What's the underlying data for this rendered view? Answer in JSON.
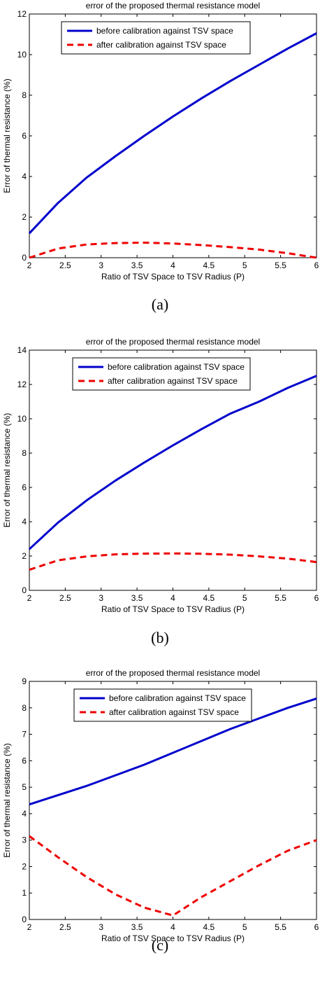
{
  "chart_data": [
    {
      "type": "line",
      "panel_label": "(a)",
      "title": "error of the proposed thermal resistance model",
      "xlabel": "Ratio of TSV Space to TSV Radius (P)",
      "ylabel": "Error of thermal resistance (%)",
      "xlim": [
        2,
        6
      ],
      "ylim": [
        0,
        12
      ],
      "xticks": [
        "2",
        "2.5",
        "3",
        "3.5",
        "4",
        "4.5",
        "5",
        "5.5",
        "6"
      ],
      "yticks": [
        "0",
        "2",
        "4",
        "6",
        "8",
        "10",
        "12"
      ],
      "grid": false,
      "legend_position": "top",
      "x": [
        2,
        2.4,
        2.8,
        3.2,
        3.6,
        4.0,
        4.4,
        4.8,
        5.2,
        5.6,
        6.0
      ],
      "series": [
        {
          "name": "before calibration against TSV space",
          "color": "#0000cc",
          "dash": "solid",
          "values": [
            1.2,
            2.7,
            3.95,
            5.0,
            6.0,
            6.95,
            7.85,
            8.7,
            9.5,
            10.3,
            11.05
          ]
        },
        {
          "name": "after calibration against TSV space",
          "color": "#ee0000",
          "dash": "dashed",
          "values": [
            0.0,
            0.45,
            0.65,
            0.72,
            0.74,
            0.7,
            0.62,
            0.52,
            0.4,
            0.22,
            0.0
          ]
        }
      ]
    },
    {
      "type": "line",
      "panel_label": "(b)",
      "title": "error of the proposed thermal resistance model",
      "xlabel": "Ratio of TSV Space to TSV Radius (P)",
      "ylabel": "Error of thermal resistance (%)",
      "xlim": [
        2,
        6
      ],
      "ylim": [
        0,
        14
      ],
      "xticks": [
        "2",
        "2.5",
        "3",
        "3.5",
        "4",
        "4.5",
        "5",
        "5.5",
        "6"
      ],
      "yticks": [
        "0",
        "2",
        "4",
        "6",
        "8",
        "10",
        "12",
        "14"
      ],
      "grid": false,
      "legend_position": "top",
      "x": [
        2,
        2.4,
        2.8,
        3.2,
        3.6,
        4.0,
        4.4,
        4.8,
        5.2,
        5.6,
        6.0
      ],
      "series": [
        {
          "name": "before calibration against TSV space",
          "color": "#0000cc",
          "dash": "solid",
          "values": [
            2.4,
            3.95,
            5.25,
            6.4,
            7.45,
            8.45,
            9.4,
            10.3,
            11.0,
            11.8,
            12.5
          ]
        },
        {
          "name": "after calibration against TSV space",
          "color": "#ee0000",
          "dash": "dashed",
          "values": [
            1.2,
            1.75,
            1.98,
            2.1,
            2.14,
            2.15,
            2.13,
            2.08,
            1.98,
            1.85,
            1.65
          ]
        }
      ]
    },
    {
      "type": "line",
      "panel_label": "(c)",
      "title": "error of the proposed thermal resistance model",
      "xlabel": "Ratio of TSV Space to TSV Radius (P)",
      "ylabel": "Error of thermal resistance (%)",
      "xlim": [
        2,
        6
      ],
      "ylim": [
        0,
        9
      ],
      "xticks": [
        "2",
        "2.5",
        "3",
        "3.5",
        "4",
        "4.5",
        "5",
        "5.5",
        "6"
      ],
      "yticks": [
        "0",
        "1",
        "2",
        "3",
        "4",
        "5",
        "6",
        "7",
        "8",
        "9"
      ],
      "grid": false,
      "legend_position": "top",
      "x": [
        2,
        2.4,
        2.8,
        3.2,
        3.6,
        4.0,
        4.4,
        4.8,
        5.2,
        5.6,
        6.0
      ],
      "series": [
        {
          "name": "before calibration against TSV space",
          "color": "#0000cc",
          "dash": "solid",
          "values": [
            4.35,
            4.7,
            5.05,
            5.45,
            5.85,
            6.3,
            6.75,
            7.2,
            7.6,
            8.0,
            8.35
          ]
        },
        {
          "name": "after calibration against TSV space",
          "color": "#ee0000",
          "dash": "dashed",
          "values": [
            3.15,
            2.35,
            1.6,
            0.95,
            0.45,
            0.15,
            0.85,
            1.45,
            2.05,
            2.6,
            3.0
          ]
        }
      ]
    }
  ]
}
